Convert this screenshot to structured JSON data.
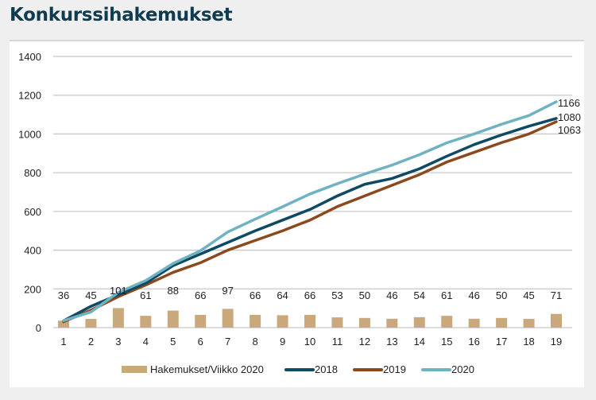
{
  "page": {
    "title": "Konkurssihakemukset"
  },
  "colors": {
    "bars": "#c9a87c",
    "s2018": "#0e4a63",
    "s2019": "#8b4a1e",
    "s2020": "#6fb3c3",
    "grid": "#c8c8c8"
  },
  "chart_data": {
    "type": "bar+line",
    "title": "Konkurssihakemukset",
    "xlabel": "",
    "ylabel": "",
    "ylim": [
      0,
      1400
    ],
    "yticks": [
      0,
      200,
      400,
      600,
      800,
      1000,
      1200,
      1400
    ],
    "grid": true,
    "legend_position": "bottom",
    "categories": [
      "1",
      "2",
      "3",
      "4",
      "5",
      "6",
      "7",
      "8",
      "9",
      "10",
      "11",
      "12",
      "13",
      "14",
      "15",
      "16",
      "17",
      "18",
      "19"
    ],
    "bars": {
      "name": "Hakemukset/Viikko 2020",
      "values": [
        36,
        45,
        101,
        61,
        88,
        66,
        97,
        66,
        64,
        66,
        53,
        50,
        46,
        54,
        61,
        46,
        50,
        45,
        71
      ]
    },
    "series": [
      {
        "name": "2018",
        "values": [
          35,
          110,
          170,
          230,
          320,
          380,
          440,
          500,
          555,
          610,
          680,
          740,
          770,
          820,
          885,
          945,
          995,
          1040,
          1080
        ],
        "end_label": "1080"
      },
      {
        "name": "2019",
        "values": [
          30,
          90,
          160,
          220,
          285,
          335,
          400,
          450,
          500,
          555,
          625,
          680,
          735,
          790,
          855,
          905,
          955,
          1000,
          1063
        ],
        "end_label": "1063"
      },
      {
        "name": "2020",
        "values": [
          36,
          81,
          182,
          243,
          331,
          397,
          494,
          560,
          624,
          690,
          743,
          793,
          839,
          893,
          954,
          1000,
          1050,
          1095,
          1166
        ],
        "end_label": "1166"
      }
    ]
  }
}
